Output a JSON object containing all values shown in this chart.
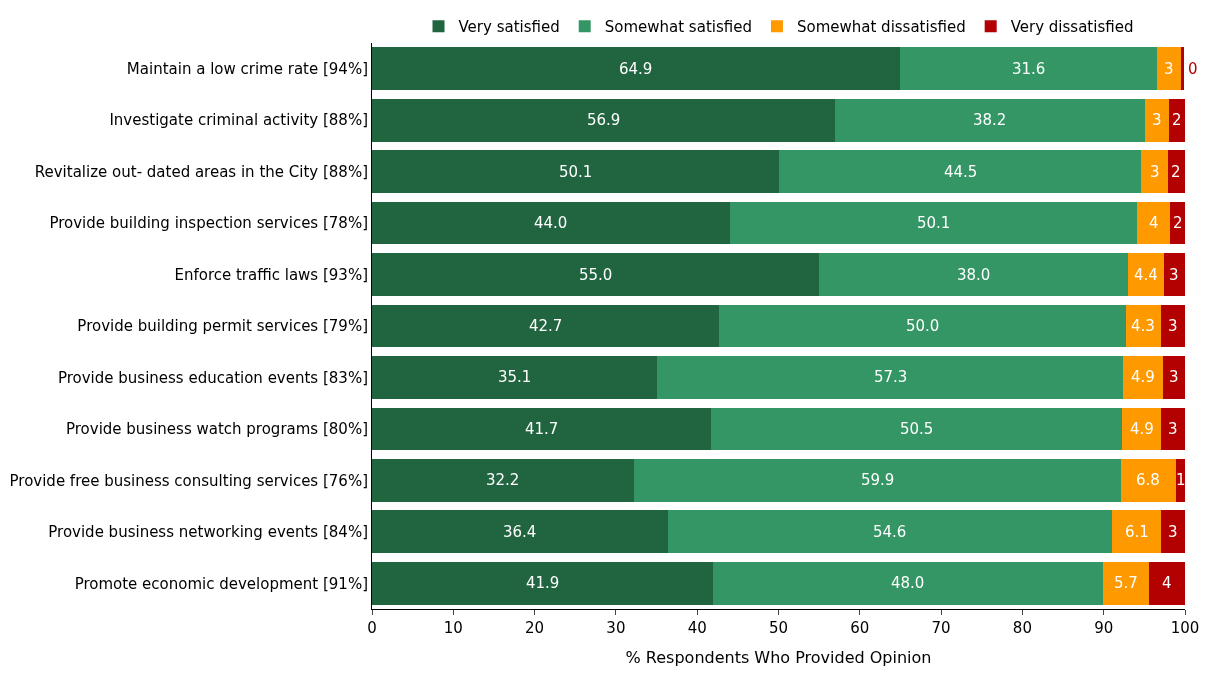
{
  "chart_data": {
    "type": "bar",
    "orientation": "horizontal",
    "stacked": true,
    "xlabel": "% Respondents Who Provided Opinion",
    "legend": "top",
    "xlim": [
      0,
      100
    ],
    "xticks": [
      0,
      10,
      20,
      30,
      40,
      50,
      60,
      70,
      80,
      90,
      100
    ],
    "categories": [
      "Maintain a low crime rate [94%]",
      "Investigate criminal activity [88%]",
      "Revitalize out- dated areas in the City [88%]",
      "Provide building inspection services [78%]",
      "Enforce traffic laws [93%]",
      "Provide building permit services [79%]",
      "Provide business education events [83%]",
      "Provide business watch programs [80%]",
      "Provide free business consulting services [76%]",
      "Provide business networking events [84%]",
      "Promote economic development [91%]"
    ],
    "series": [
      {
        "name": "Very satisfied",
        "color": "#216540",
        "values": [
          64.9,
          56.9,
          50.1,
          44.0,
          55.0,
          42.7,
          35.1,
          41.7,
          32.2,
          36.4,
          41.9
        ],
        "value_labels": [
          "64.9",
          "56.9",
          "50.1",
          "44.0",
          "55.0",
          "42.7",
          "35.1",
          "41.7",
          "32.2",
          "36.4",
          "41.9"
        ]
      },
      {
        "name": "Somewhat satisfied",
        "color": "#339664",
        "values": [
          31.6,
          38.2,
          44.5,
          50.1,
          38.0,
          50.0,
          57.3,
          50.5,
          59.9,
          54.6,
          48.0
        ],
        "value_labels": [
          "31.6",
          "38.2",
          "44.5",
          "50.1",
          "38.0",
          "50.0",
          "57.3",
          "50.5",
          "59.9",
          "54.6",
          "48.0"
        ]
      },
      {
        "name": "Somewhat dissatisfied",
        "color": "#ff9900",
        "values": [
          3.0,
          2.9,
          3.3,
          4.1,
          4.4,
          4.3,
          4.9,
          4.9,
          6.8,
          6.1,
          5.7
        ],
        "value_labels": [
          "3",
          "3",
          "3",
          "4",
          "4.4",
          "4.3",
          "4.9",
          "4.9",
          "6.8",
          "6.1",
          "5.7"
        ]
      },
      {
        "name": "Very dissatisfied",
        "color": "#b30000",
        "values": [
          0.4,
          2.0,
          2.1,
          1.8,
          2.6,
          3.0,
          2.7,
          2.9,
          1.1,
          2.9,
          4.4
        ],
        "value_labels": [
          "0",
          "2",
          "2",
          "2",
          "3",
          "3",
          "3",
          "3",
          "1",
          "3",
          "4"
        ]
      }
    ]
  }
}
